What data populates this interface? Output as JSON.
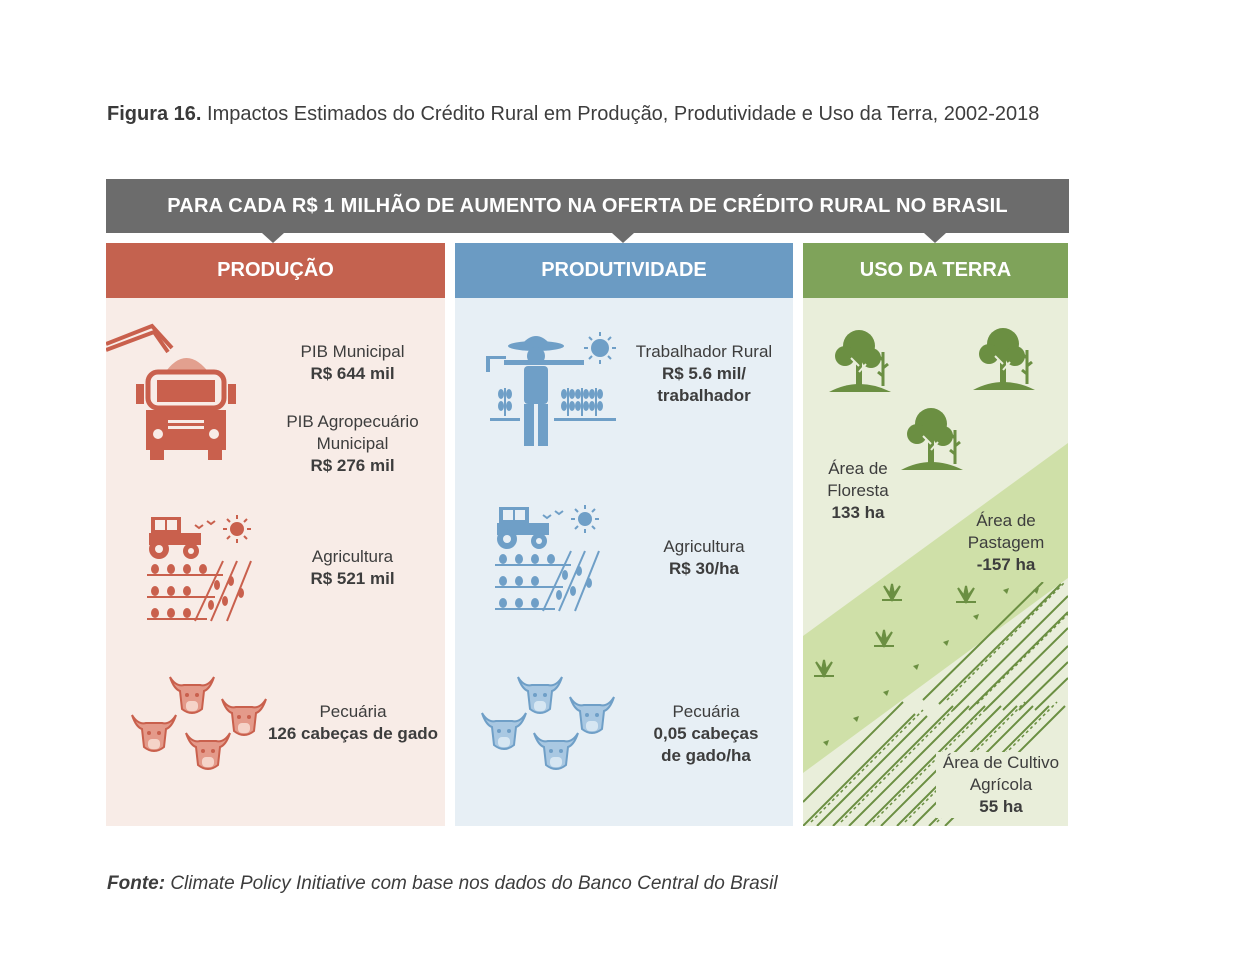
{
  "figure": {
    "label": "Figura 16.",
    "title": "Impactos Estimados do Crédito Rural em Produção, Produtividade e Uso da Terra, 2002-2018"
  },
  "banner": "PARA CADA R$ 1 MILHÃO DE AUMENTO NA OFERTA DE CRÉDITO RURAL NO BRASIL",
  "colors": {
    "banner": "#6c6c6c",
    "producao": "#c4624f",
    "producao_bg": "#f8ece7",
    "producao_icon": "#c9604d",
    "produtividade": "#6b9bc3",
    "produtividade_bg": "#e7eff5",
    "produtividade_icon": "#6f9fc7",
    "uso": "#7fa35a",
    "uso_bg": "#e9eeda",
    "uso_band": "#cfe0a8",
    "uso_icon": "#6b8f42"
  },
  "columns": {
    "producao": {
      "header": "PRODUÇÃO",
      "items": [
        {
          "label": "PIB Municipal",
          "value": "R$ 644 mil",
          "icon": "truck-icon"
        },
        {
          "label_line1": "PIB Agropecuário",
          "label_line2": "Municipal",
          "value": "R$ 276 mil"
        },
        {
          "label": "Agricultura",
          "value": "R$ 521 mil",
          "icon": "tractor-field-icon"
        },
        {
          "label": "Pecuária",
          "value": "126 cabeças de gado",
          "icon": "cattle-icon"
        }
      ]
    },
    "produtividade": {
      "header": "PRODUTIVIDADE",
      "items": [
        {
          "label": "Trabalhador Rural",
          "value_line1": "R$ 5.6 mil/",
          "value_line2": "trabalhador",
          "icon": "farmer-icon"
        },
        {
          "label": "Agricultura",
          "value": "R$ 30/ha",
          "icon": "tractor-field-icon"
        },
        {
          "label": "Pecuária",
          "value_line1": "0,05 cabeças",
          "value_line2": "de gado/ha",
          "icon": "cattle-icon"
        }
      ]
    },
    "uso_da_terra": {
      "header": "USO DA TERRA",
      "items": [
        {
          "label_line1": "Área de",
          "label_line2": "Floresta",
          "value": "133 ha",
          "icon": "trees-icon"
        },
        {
          "label_line1": "Área de",
          "label_line2": "Pastagem",
          "value": "-157 ha",
          "icon": "grass-icon"
        },
        {
          "label_line1": "Área de Cultivo",
          "label_line2": "Agrícola",
          "value": "55 ha",
          "icon": "crop-rows-icon"
        }
      ]
    }
  },
  "source": {
    "label": "Fonte:",
    "text": "Climate Policy Initiative com base nos dados do Banco Central do Brasil"
  }
}
